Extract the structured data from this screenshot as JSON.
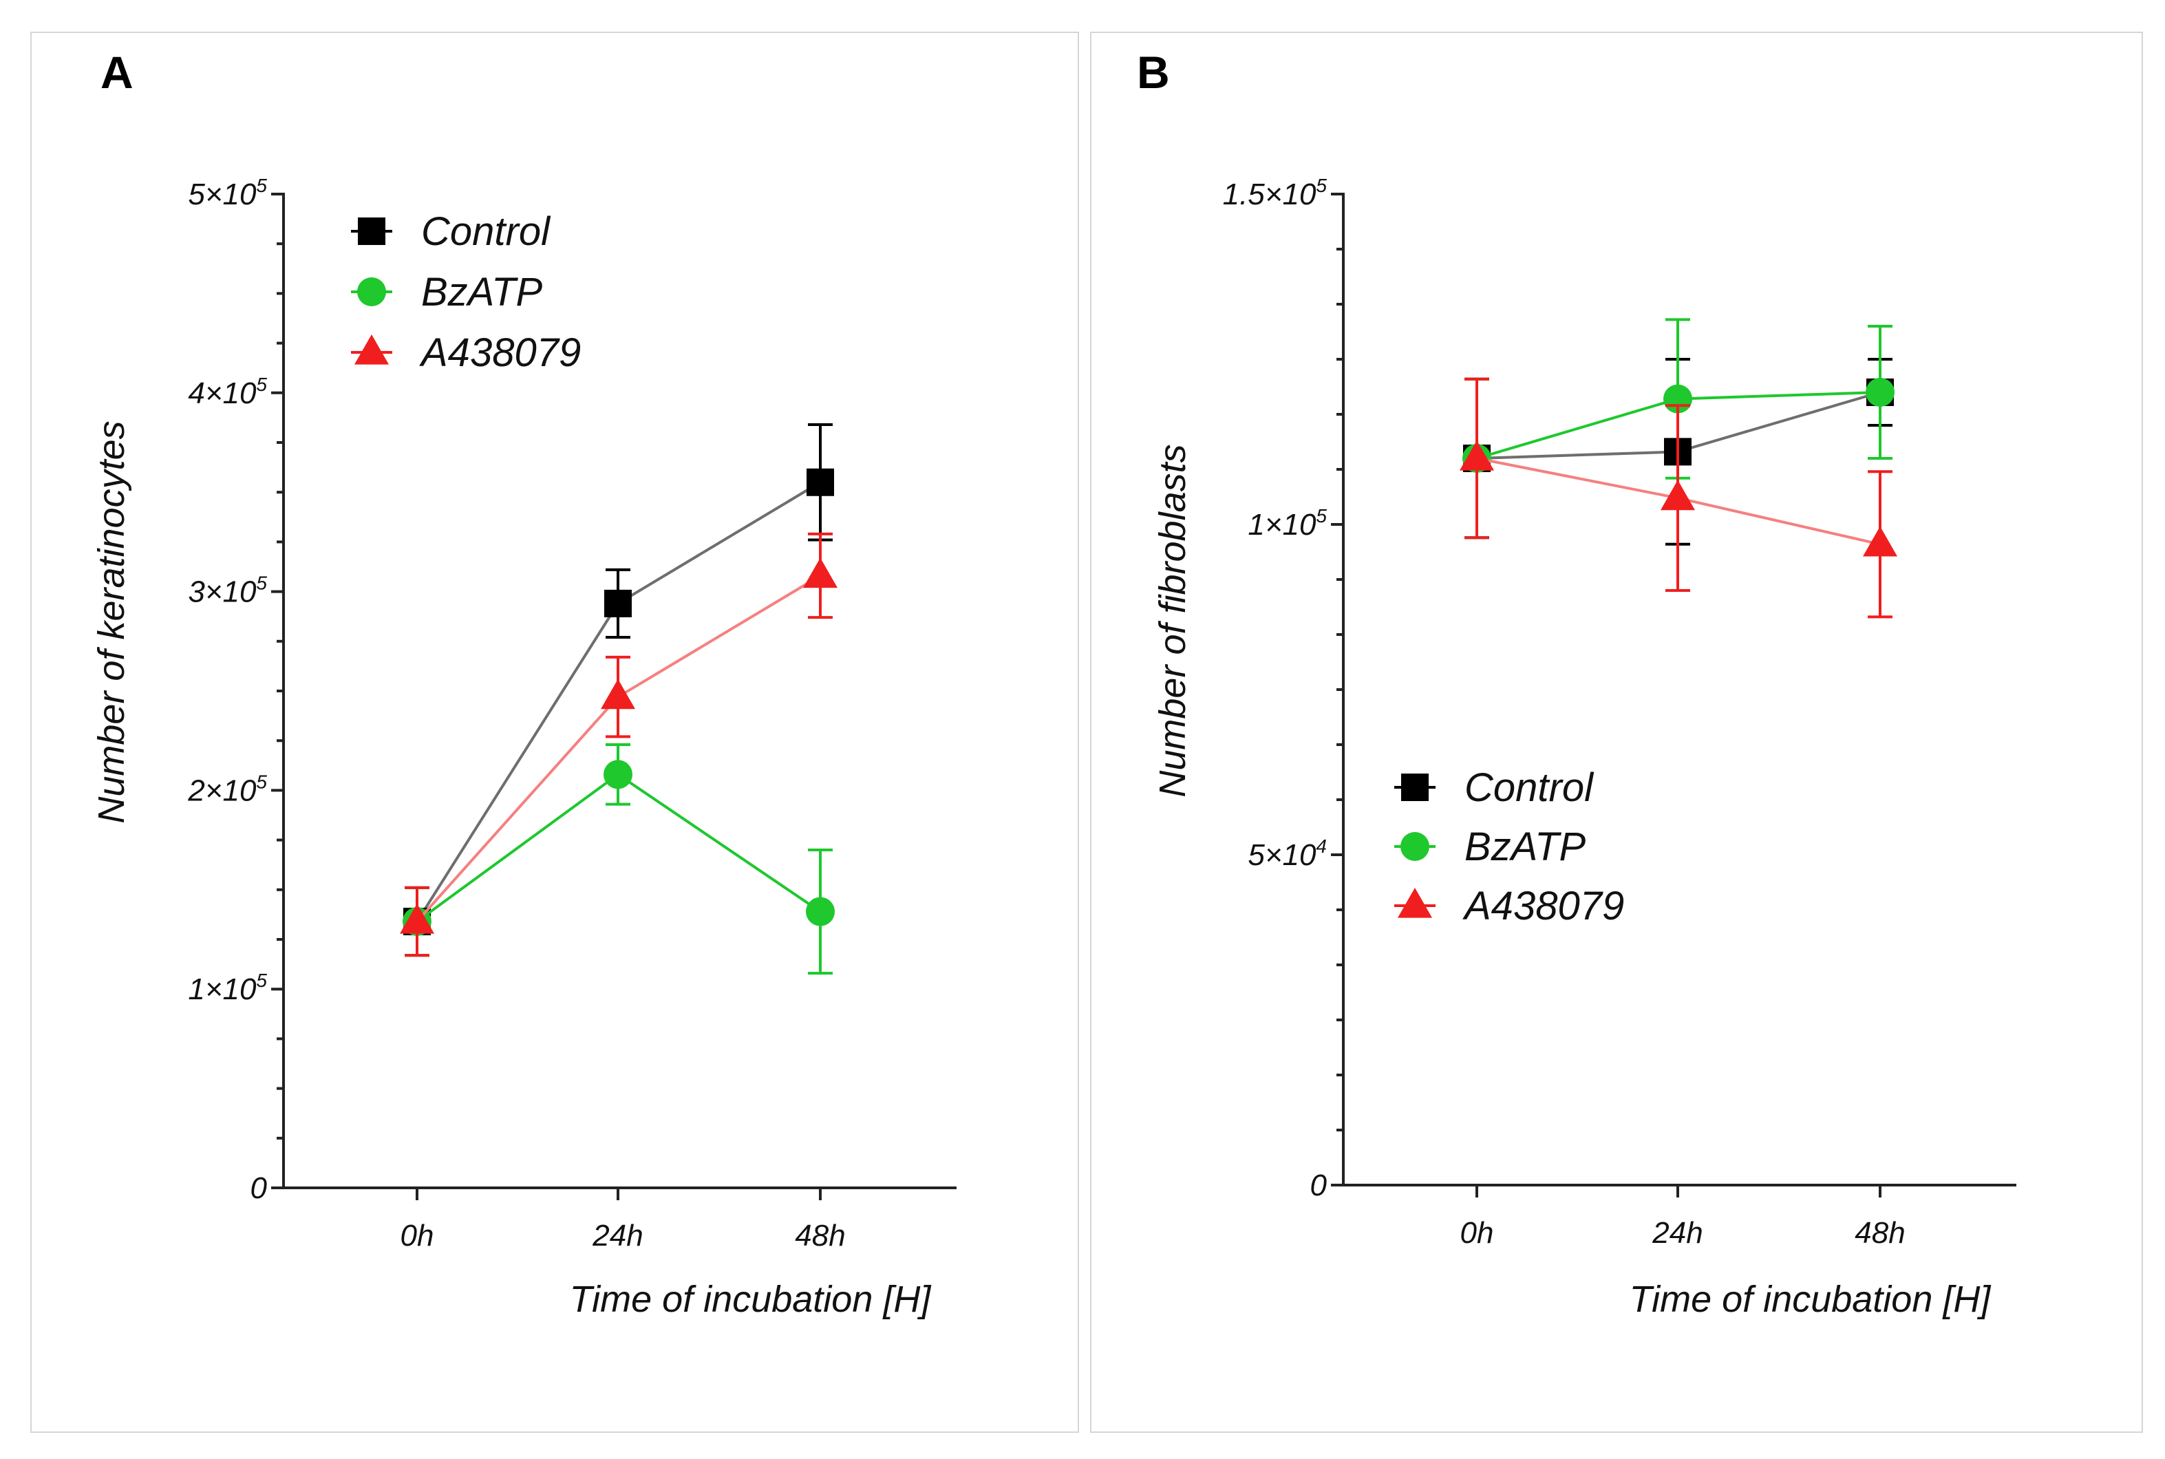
{
  "chart_data": [
    {
      "panel": "A",
      "type": "line",
      "ylabel": "Number of keratinocytes",
      "xlabel": "Time of incubation [H]",
      "categories": [
        "0h",
        "24h",
        "48h"
      ],
      "ylim": [
        0,
        500000
      ],
      "yticks_major": [
        {
          "value": 0,
          "mant": "0",
          "exp": ""
        },
        {
          "value": 100000,
          "mant": "1×10",
          "exp": "5"
        },
        {
          "value": 200000,
          "mant": "2×10",
          "exp": "5"
        },
        {
          "value": 300000,
          "mant": "3×10",
          "exp": "5"
        },
        {
          "value": 400000,
          "mant": "4×10",
          "exp": "5"
        },
        {
          "value": 500000,
          "mant": "5×10",
          "exp": "5"
        }
      ],
      "legend_position": "top-left",
      "series": [
        {
          "name": "Control",
          "color": "#000000",
          "line_color": "#6e6e6e",
          "marker": "square",
          "values": [
            134000,
            294000,
            355000
          ],
          "errors": [
            17000,
            17000,
            29000
          ]
        },
        {
          "name": "BzATP",
          "color": "#1ec82d",
          "line_color": "#1ec82d",
          "marker": "circle",
          "values": [
            134000,
            208000,
            139000
          ],
          "errors": [
            17000,
            15000,
            31000
          ]
        },
        {
          "name": "A438079",
          "color": "#f01e1e",
          "line_color": "#f58080",
          "marker": "triangle",
          "values": [
            134000,
            247000,
            308000
          ],
          "errors": [
            17000,
            20000,
            21000
          ]
        }
      ]
    },
    {
      "panel": "B",
      "type": "line",
      "ylabel": "Number of fibroblasts",
      "xlabel": "Time of incubation [H]",
      "categories": [
        "0h",
        "24h",
        "48h"
      ],
      "ylim": [
        0,
        150000
      ],
      "yticks_major": [
        {
          "value": 0,
          "mant": "0",
          "exp": ""
        },
        {
          "value": 50000,
          "mant": "5×10",
          "exp": "4"
        },
        {
          "value": 100000,
          "mant": "1×10",
          "exp": "5"
        },
        {
          "value": 150000,
          "mant": "1.5×10",
          "exp": "5"
        }
      ],
      "legend_position": "bottom-left",
      "series": [
        {
          "name": "Control",
          "color": "#000000",
          "line_color": "#6e6e6e",
          "marker": "square",
          "values": [
            110000,
            111000,
            120000
          ],
          "errors": [
            12000,
            14000,
            5000
          ]
        },
        {
          "name": "BzATP",
          "color": "#1ec82d",
          "line_color": "#1ec82d",
          "marker": "circle",
          "values": [
            110000,
            119000,
            120000
          ],
          "errors": [
            12000,
            12000,
            10000
          ]
        },
        {
          "name": "A438079",
          "color": "#f01e1e",
          "line_color": "#f58080",
          "marker": "triangle",
          "values": [
            110000,
            104000,
            97000
          ],
          "errors": [
            12000,
            14000,
            11000
          ]
        }
      ]
    }
  ]
}
